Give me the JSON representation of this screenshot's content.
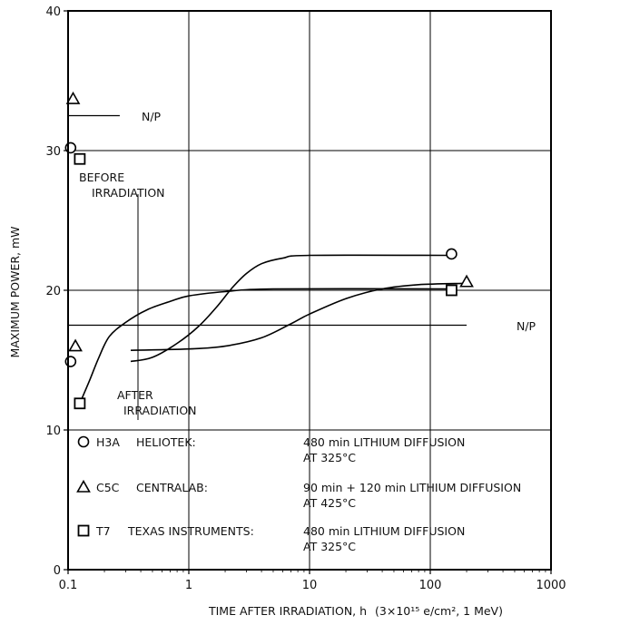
{
  "chart_data": {
    "type": "line",
    "title": "",
    "xlabel": "TIME AFTER IRRADIATION, h",
    "xlabel_suffix": "(3×10¹⁵ e/cm², 1 MeV)",
    "ylabel": "MAXIMUM POWER, mW",
    "x_scale": "log",
    "xlim": [
      0.1,
      1000
    ],
    "ylim": [
      0,
      40
    ],
    "x_ticks": [
      "0.1",
      "1",
      "10",
      "100",
      "1000"
    ],
    "y_ticks": [
      "0",
      "10",
      "20",
      "30",
      "40"
    ],
    "grid": true,
    "reference_lines": [
      {
        "label": "N/P",
        "y": 32.5,
        "x_start": 0.1,
        "x_end": 0.25
      },
      {
        "label": "N/P",
        "y": 17.5,
        "x_start": 0.1,
        "x_end": 200
      }
    ],
    "annotations": {
      "before": [
        "BEFORE",
        "IRRADIATION"
      ],
      "after": [
        "AFTER",
        "IRRADIATION"
      ]
    },
    "series": [
      {
        "name": "H3A",
        "marker": "circle",
        "before_irradiation": {
          "x": 0.105,
          "y": 30.2
        },
        "points": [
          {
            "x": 0.105,
            "y": 14.9
          },
          {
            "x": 150,
            "y": 22.6
          }
        ],
        "curve": [
          [
            0.33,
            14.9
          ],
          [
            0.5,
            15.2
          ],
          [
            0.8,
            16.2
          ],
          [
            1.2,
            17.4
          ],
          [
            1.7,
            18.8
          ],
          [
            2.3,
            20.2
          ],
          [
            3,
            21.2
          ],
          [
            4,
            21.9
          ],
          [
            6,
            22.3
          ],
          [
            10,
            22.5
          ],
          [
            150,
            22.5
          ]
        ]
      },
      {
        "name": "C5C",
        "marker": "triangle",
        "before_irradiation": {
          "x": 0.11,
          "y": 33.7
        },
        "points": [
          {
            "x": 0.115,
            "y": 16.0
          },
          {
            "x": 200,
            "y": 20.6
          }
        ],
        "curve": [
          [
            0.33,
            15.7
          ],
          [
            1,
            15.8
          ],
          [
            2,
            16.0
          ],
          [
            4,
            16.6
          ],
          [
            7,
            17.6
          ],
          [
            10,
            18.3
          ],
          [
            20,
            19.4
          ],
          [
            40,
            20.1
          ],
          [
            80,
            20.4
          ],
          [
            200,
            20.5
          ]
        ]
      },
      {
        "name": "T7",
        "marker": "square",
        "before_irradiation": {
          "x": 0.125,
          "y": 29.4
        },
        "points": [
          {
            "x": 0.125,
            "y": 11.9
          },
          {
            "x": 150,
            "y": 20.0
          }
        ],
        "curve": [
          [
            0.125,
            11.9
          ],
          [
            0.15,
            13.5
          ],
          [
            0.18,
            15.2
          ],
          [
            0.22,
            16.7
          ],
          [
            0.3,
            17.7
          ],
          [
            0.45,
            18.6
          ],
          [
            0.7,
            19.2
          ],
          [
            1,
            19.6
          ],
          [
            2,
            19.9
          ],
          [
            5,
            20.1
          ],
          [
            150,
            20.1
          ]
        ]
      }
    ],
    "legend": {
      "placement": "bottom",
      "entries": [
        {
          "marker": "circle",
          "code": "H3A",
          "maker": "HELIOTEK:",
          "process": [
            "480 min LITHIUM DIFFUSION",
            "AT 325°C"
          ]
        },
        {
          "marker": "triangle",
          "code": "C5C",
          "maker": "CENTRALAB:",
          "process": [
            "90 min + 120 min LITHIUM DIFFUSION",
            "AT 425°C"
          ]
        },
        {
          "marker": "square",
          "code": "T7",
          "maker": "TEXAS INSTRUMENTS:",
          "process": [
            "480 min LITHIUM DIFFUSION",
            "AT 325°C"
          ]
        }
      ]
    }
  }
}
